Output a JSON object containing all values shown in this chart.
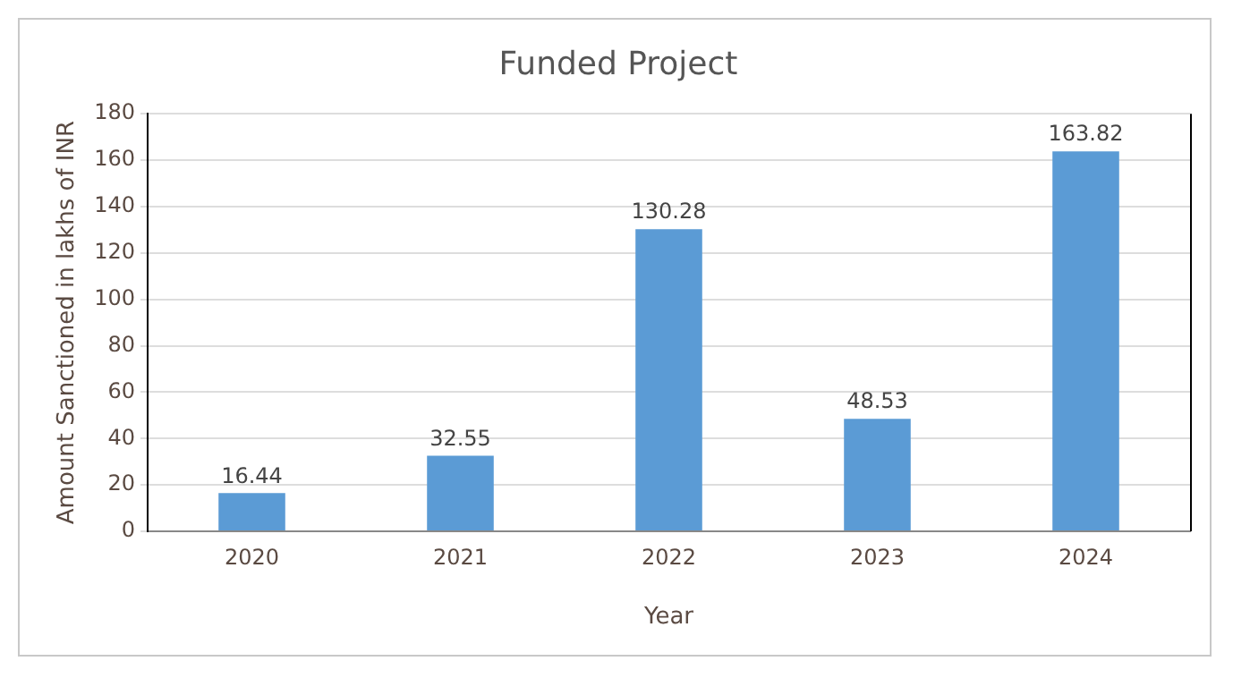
{
  "chart_data": {
    "type": "bar",
    "title": "Funded Project",
    "xlabel": "Year",
    "ylabel": "Amount Sanctioned in lakhs of INR",
    "categories": [
      "2020",
      "2021",
      "2022",
      "2023",
      "2024"
    ],
    "values": [
      16.44,
      32.55,
      130.28,
      48.53,
      163.82
    ],
    "color": "#5b9bd5",
    "ylim": [
      0,
      180
    ],
    "yticks": [
      0,
      20,
      40,
      60,
      80,
      100,
      120,
      140,
      160,
      180
    ],
    "grid": "y",
    "data_labels": true,
    "legend": false
  }
}
